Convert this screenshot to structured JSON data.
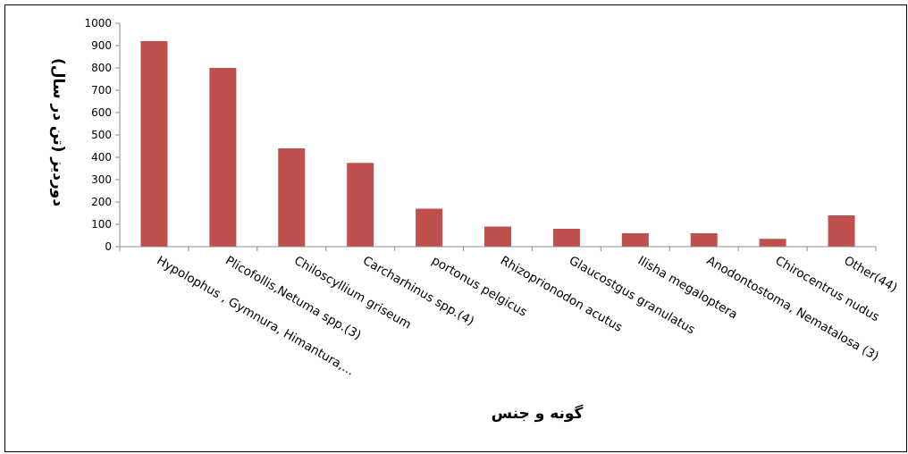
{
  "chart_data": {
    "type": "bar",
    "title": "",
    "xlabel": "گونه و جنس",
    "ylabel": "دوردیز (تن در سال)",
    "ylim": [
      0,
      1000
    ],
    "yticks": [
      0,
      100,
      200,
      300,
      400,
      500,
      600,
      700,
      800,
      900,
      1000
    ],
    "grid": false,
    "legend": "none",
    "bar_color": "#c0504d",
    "categories": [
      "Hypolophus , Gymnura, Himantura,...",
      "Plicofollis,Netuma spp.(3)",
      "Chiloscyllium griseum",
      "Carcharhinus spp.(4)",
      "portonus pelgicus",
      "Rhizoprionodon acutus",
      "Glaucostgus granulatus",
      "Ilisha megaloptera",
      "Anodontostoma, Nematalosa (3)",
      "Chirocentrus nudus",
      "Other(44)"
    ],
    "values": [
      920,
      800,
      440,
      375,
      170,
      90,
      80,
      60,
      60,
      35,
      140
    ]
  }
}
